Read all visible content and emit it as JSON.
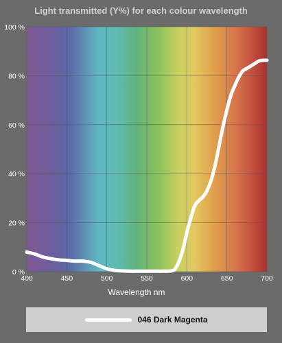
{
  "chart_data": {
    "type": "line",
    "title": "Light transmitted (Y%) for each colour wavelength",
    "xlabel": "Wavelength nm",
    "ylabel": "",
    "xlim": [
      400,
      700
    ],
    "ylim": [
      0,
      100
    ],
    "x_ticks": [
      400,
      450,
      500,
      550,
      600,
      650,
      700
    ],
    "y_ticks": [
      0,
      20,
      40,
      60,
      80,
      100
    ],
    "y_tick_labels": [
      "0 %",
      "20 %",
      "40 %",
      "60 %",
      "80 %",
      "100 %"
    ],
    "grid": true,
    "legend_position": "bottom",
    "background": "visible-spectrum gradient",
    "line_color": "#ffffff",
    "series": [
      {
        "name": "046 Dark Magenta",
        "x": [
          400,
          410,
          420,
          430,
          440,
          450,
          460,
          470,
          480,
          490,
          500,
          510,
          520,
          530,
          540,
          550,
          560,
          570,
          580,
          585,
          590,
          595,
          600,
          605,
          610,
          615,
          620,
          625,
          630,
          635,
          640,
          645,
          650,
          655,
          660,
          665,
          670,
          675,
          680,
          685,
          690,
          695,
          700
        ],
        "y": [
          8,
          7.2,
          6,
          5.3,
          4.8,
          4.6,
          4.3,
          4.3,
          3.8,
          2.5,
          1.2,
          0.5,
          0.3,
          0.2,
          0.2,
          0.2,
          0.2,
          0.2,
          0.3,
          1,
          4,
          9,
          16,
          22,
          27,
          29,
          30.5,
          33,
          37,
          43,
          51,
          59,
          66,
          72,
          76,
          79.5,
          82,
          83,
          84,
          85,
          86,
          86.3,
          86.3
        ]
      }
    ]
  }
}
